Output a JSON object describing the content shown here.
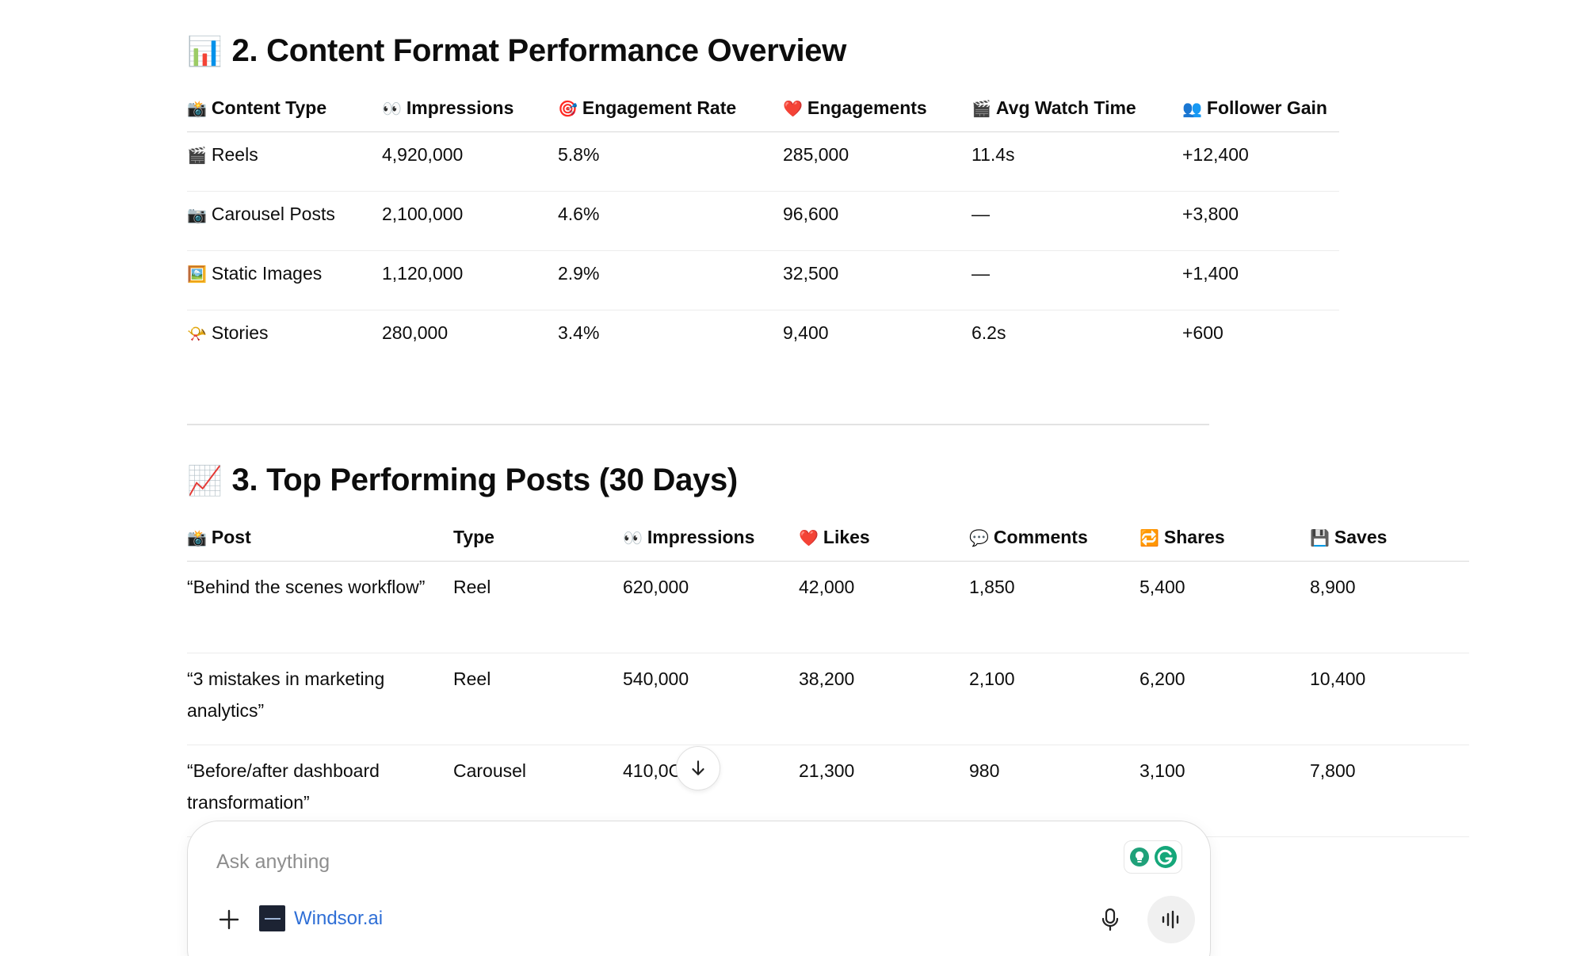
{
  "section2": {
    "emoji": "📊",
    "title": "2. Content Format Performance Overview",
    "table": {
      "headers": [
        {
          "emoji": "📸",
          "label": "Content Type"
        },
        {
          "emoji": "👀",
          "label": "Impressions"
        },
        {
          "emoji": "🎯",
          "label": "Engagement Rate"
        },
        {
          "emoji": "❤️",
          "label": "Engagements"
        },
        {
          "emoji": "🎬",
          "label": "Avg Watch Time"
        },
        {
          "emoji": "👥",
          "label": "Follower Gain"
        }
      ],
      "rows": [
        {
          "emoji": "🎬",
          "type": "Reels",
          "impressions": "4,920,000",
          "engagement_rate": "5.8%",
          "engagements": "285,000",
          "avg_watch_time": "11.4s",
          "follower_gain": "+12,400"
        },
        {
          "emoji": "📷",
          "type": "Carousel Posts",
          "impressions": "2,100,000",
          "engagement_rate": "4.6%",
          "engagements": "96,600",
          "avg_watch_time": "—",
          "follower_gain": "+3,800"
        },
        {
          "emoji": "🖼️",
          "type": "Static Images",
          "impressions": "1,120,000",
          "engagement_rate": "2.9%",
          "engagements": "32,500",
          "avg_watch_time": "—",
          "follower_gain": "+1,400"
        },
        {
          "emoji": "📯",
          "type": "Stories",
          "impressions": "280,000",
          "engagement_rate": "3.4%",
          "engagements": "9,400",
          "avg_watch_time": "6.2s",
          "follower_gain": "+600"
        }
      ]
    }
  },
  "section3": {
    "emoji": "📈",
    "title": "3. Top Performing Posts (30 Days)",
    "table": {
      "headers": [
        {
          "emoji": "📸",
          "label": "Post"
        },
        {
          "emoji": "",
          "label": "Type"
        },
        {
          "emoji": "👀",
          "label": "Impressions"
        },
        {
          "emoji": "❤️",
          "label": "Likes"
        },
        {
          "emoji": "💬",
          "label": "Comments"
        },
        {
          "emoji": "🔁",
          "label": "Shares"
        },
        {
          "emoji": "💾",
          "label": "Saves"
        }
      ],
      "rows": [
        {
          "post": "“Behind the scenes workflow”",
          "type": "Reel",
          "impressions": "620,000",
          "likes": "42,000",
          "comments": "1,850",
          "shares": "5,400",
          "saves": "8,900"
        },
        {
          "post": "“3 mistakes in marketing analytics”",
          "type": "Reel",
          "impressions": "540,000",
          "likes": "38,200",
          "comments": "2,100",
          "shares": "6,200",
          "saves": "10,400"
        },
        {
          "post": "“Before/after dashboard transformation”",
          "type": "Carousel",
          "impressions": "410,0С",
          "likes": "21,300",
          "comments": "980",
          "shares": "3,100",
          "saves": "7,800"
        }
      ]
    }
  },
  "scroll_button": {
    "icon": "arrow-down-icon"
  },
  "composer": {
    "placeholder": "Ask anything",
    "connector_label": "Windsor.ai",
    "icons": [
      "plus-icon",
      "mic-icon",
      "voice-mode-icon",
      "grammarly-icon",
      "extension-bulb-icon"
    ],
    "accent_color": "#2f6fd6"
  }
}
